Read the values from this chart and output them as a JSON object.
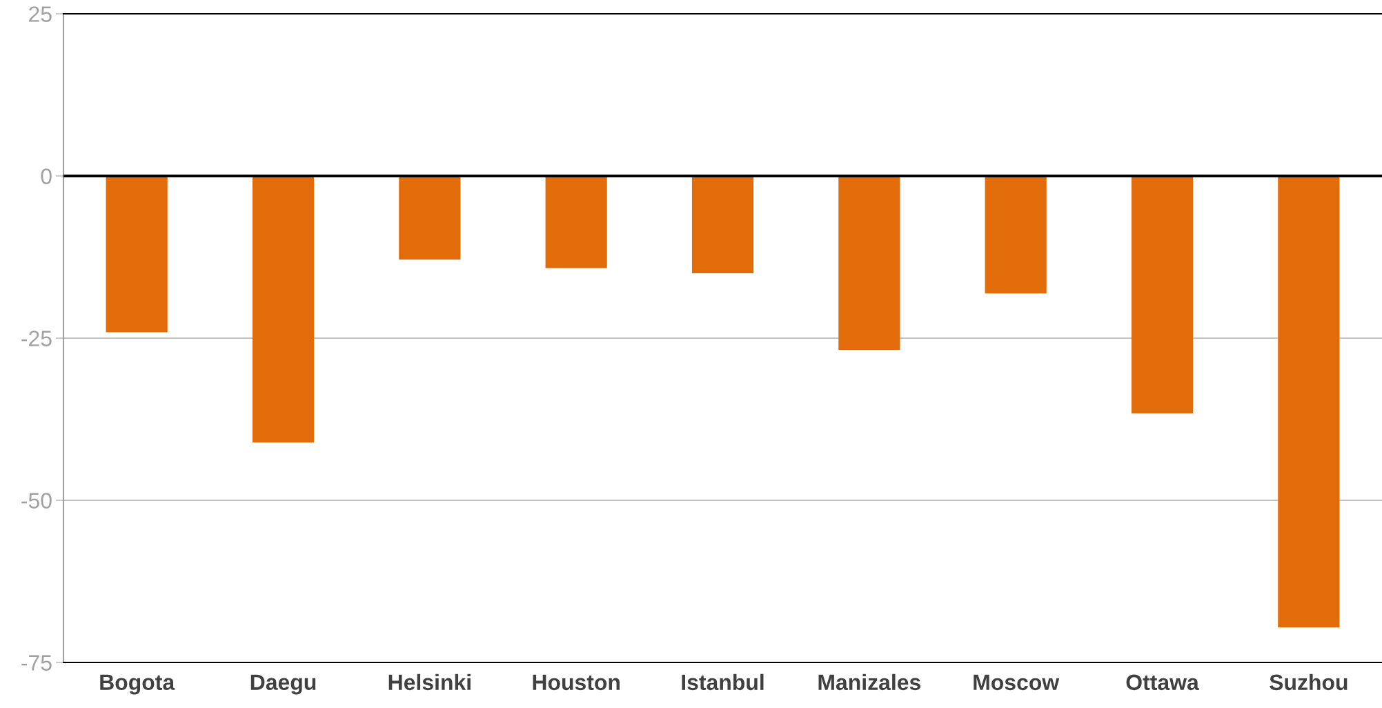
{
  "chart_data": {
    "type": "bar",
    "categories": [
      "Bogota",
      "Daegu",
      "Helsinki",
      "Houston",
      "Istanbul",
      "Manizales",
      "Moscow",
      "Ottawa",
      "Suzhou"
    ],
    "values": [
      -24.1,
      -41.1,
      -12.9,
      -14.2,
      -15.0,
      -26.8,
      -18.1,
      -36.6,
      -69.6
    ],
    "color": "#e36c0a",
    "ylim": [
      -75,
      25
    ],
    "yticks": [
      -75,
      -50,
      -25,
      0,
      25
    ],
    "grid": "y",
    "legend": false,
    "ref_lines": [
      {
        "axis": "y",
        "value": 0,
        "color": "#000000"
      }
    ]
  }
}
